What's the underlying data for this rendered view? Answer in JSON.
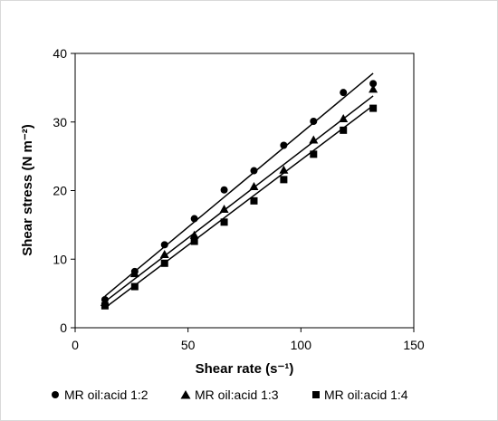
{
  "chart_data": {
    "type": "scatter",
    "xlabel": "Shear rate (s⁻¹)",
    "ylabel": "Shear stress (N m⁻²)",
    "xlim": [
      0,
      150
    ],
    "ylim": [
      0,
      40
    ],
    "xticks": [
      0,
      50,
      100,
      150
    ],
    "yticks": [
      0,
      10,
      20,
      30,
      40
    ],
    "grid": false,
    "legend_position": "bottom",
    "trendlines": "linear",
    "series": [
      {
        "name": "MR oil:acid 1:2",
        "marker": "circle",
        "x": [
          13.2,
          26.4,
          39.6,
          52.8,
          66.0,
          79.2,
          92.4,
          105.6,
          118.8,
          132.0
        ],
        "y": [
          4.1,
          8.2,
          12.1,
          15.9,
          20.1,
          22.9,
          26.6,
          30.1,
          34.3,
          35.6
        ],
        "fit": {
          "x0": 13.2,
          "y0": 4.6,
          "x1": 132.0,
          "y1": 37.1
        }
      },
      {
        "name": "MR oil:acid 1:3",
        "marker": "triangle",
        "x": [
          13.2,
          26.4,
          39.6,
          52.8,
          66.0,
          79.2,
          92.4,
          105.6,
          118.8,
          132.0
        ],
        "y": [
          3.7,
          7.9,
          10.7,
          13.5,
          17.3,
          20.6,
          23.0,
          27.4,
          30.5,
          34.8
        ],
        "fit": {
          "x0": 13.2,
          "y0": 3.8,
          "x1": 132.0,
          "y1": 33.8
        }
      },
      {
        "name": "MR oil:acid 1:4",
        "marker": "square",
        "x": [
          13.2,
          26.4,
          39.6,
          52.8,
          66.0,
          79.2,
          92.4,
          105.6,
          118.8,
          132.0
        ],
        "y": [
          3.2,
          6.0,
          9.4,
          12.6,
          15.4,
          18.5,
          21.6,
          25.3,
          28.8,
          32.0
        ],
        "fit": {
          "x0": 13.2,
          "y0": 2.9,
          "x1": 132.0,
          "y1": 32.4
        }
      }
    ]
  }
}
